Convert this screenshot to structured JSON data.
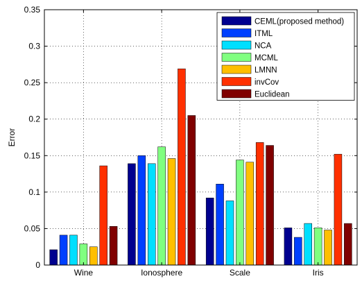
{
  "chart_data": {
    "type": "bar",
    "categories": [
      "Wine",
      "Ionosphere",
      "Scale",
      "Iris"
    ],
    "series": [
      {
        "name": "CEML(proposed method)",
        "color": "#00008f",
        "values": [
          0.021,
          0.139,
          0.092,
          0.051
        ]
      },
      {
        "name": "ITML",
        "color": "#0040ff",
        "values": [
          0.041,
          0.15,
          0.111,
          0.038
        ]
      },
      {
        "name": "NCA",
        "color": "#00dfff",
        "values": [
          0.041,
          0.139,
          0.088,
          0.057
        ]
      },
      {
        "name": "MCML",
        "color": "#80ff80",
        "values": [
          0.029,
          0.162,
          0.144,
          0.051
        ]
      },
      {
        "name": "LMNN",
        "color": "#ffbf00",
        "values": [
          0.025,
          0.146,
          0.141,
          0.048
        ]
      },
      {
        "name": "invCov",
        "color": "#ff3000",
        "values": [
          0.136,
          0.269,
          0.168,
          0.152
        ]
      },
      {
        "name": "Euclidean",
        "color": "#800000",
        "values": [
          0.053,
          0.205,
          0.164,
          0.057
        ]
      }
    ],
    "ylabel": "Error",
    "xlabel": "",
    "ylim": [
      0,
      0.35
    ],
    "yticks": [
      "0",
      "0.05",
      "0.1",
      "0.15",
      "0.2",
      "0.25",
      "0.3",
      "0.35"
    ],
    "grid": true,
    "legend_position": "top-right"
  }
}
